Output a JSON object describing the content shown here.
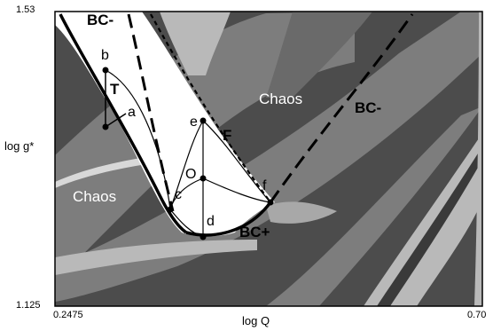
{
  "chart_data": {
    "type": "bifurcation-diagram",
    "xlabel": "log Q",
    "ylabel": "log g*",
    "x_ticks": [
      "0.2475",
      "0.70"
    ],
    "y_ticks": [
      "1.53",
      "1.125"
    ],
    "xlim": [
      0.2475,
      0.7
    ],
    "ylim": [
      1.125,
      1.53
    ],
    "grid": false,
    "curves": [
      {
        "name": "BC-",
        "style": "long-dash"
      },
      {
        "name": "BC-",
        "style": "long-dash"
      },
      {
        "name": "BC+",
        "style": "solid"
      },
      {
        "name": "F",
        "style": "short-dash"
      }
    ],
    "region_labels": [
      "Chaos",
      "Chaos"
    ],
    "point_labels": [
      "a",
      "b",
      "c",
      "d",
      "e",
      "f",
      "O"
    ],
    "path_label": "T",
    "colors": {
      "dark_region": "#4c4c4c",
      "mid_region": "#7d7d7d",
      "light_region": "#b9b9b9",
      "periodic_region": "#ffffff",
      "curves": "#000000"
    }
  }
}
